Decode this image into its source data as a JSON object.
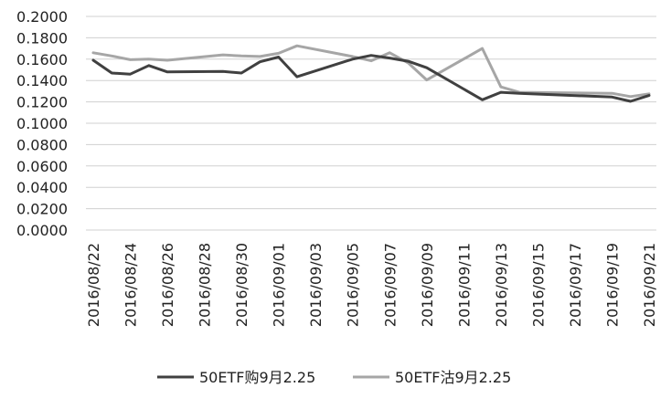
{
  "chart_data": {
    "type": "line",
    "title": "",
    "xlabel": "",
    "ylabel": "",
    "ylim": [
      0,
      0.2
    ],
    "yticks": [
      "0.0000",
      "0.0200",
      "0.0400",
      "0.0600",
      "0.0800",
      "0.1000",
      "0.1200",
      "0.1400",
      "0.1600",
      "0.1800",
      "0.2000"
    ],
    "grid": "horizontal",
    "legend": "bottom",
    "x": [
      "2016/08/22",
      "2016/08/23",
      "2016/08/24",
      "2016/08/25",
      "2016/08/26",
      "2016/08/29",
      "2016/08/30",
      "2016/08/31",
      "2016/09/01",
      "2016/09/02",
      "2016/09/05",
      "2016/09/06",
      "2016/09/07",
      "2016/09/08",
      "2016/09/09",
      "2016/09/12",
      "2016/09/13",
      "2016/09/14",
      "2016/09/19",
      "2016/09/20",
      "2016/09/21"
    ],
    "x_ticks": [
      "2016/08/22",
      "2016/08/24",
      "2016/08/26",
      "2016/08/28",
      "2016/08/30",
      "2016/09/01",
      "2016/09/03",
      "2016/09/05",
      "2016/09/07",
      "2016/09/09",
      "2016/09/11",
      "2016/09/13",
      "2016/09/15",
      "2016/09/17",
      "2016/09/19",
      "2016/09/21"
    ],
    "series": [
      {
        "name": "50ETF购9月2.25",
        "color": "#404040",
        "values": [
          0.159,
          0.147,
          0.146,
          0.154,
          0.148,
          0.1485,
          0.147,
          0.1575,
          0.162,
          0.1435,
          0.16,
          0.1635,
          0.161,
          0.158,
          0.152,
          0.122,
          0.129,
          0.128,
          0.1245,
          0.1205,
          0.126
        ]
      },
      {
        "name": "50ETF沽9月2.25",
        "color": "#a6a6a6",
        "values": [
          0.166,
          0.163,
          0.1595,
          0.16,
          0.159,
          0.164,
          0.163,
          0.1625,
          0.1655,
          0.1725,
          0.1625,
          0.1585,
          0.166,
          0.1565,
          0.1405,
          0.17,
          0.134,
          0.129,
          0.128,
          0.125,
          0.1275
        ]
      }
    ]
  }
}
